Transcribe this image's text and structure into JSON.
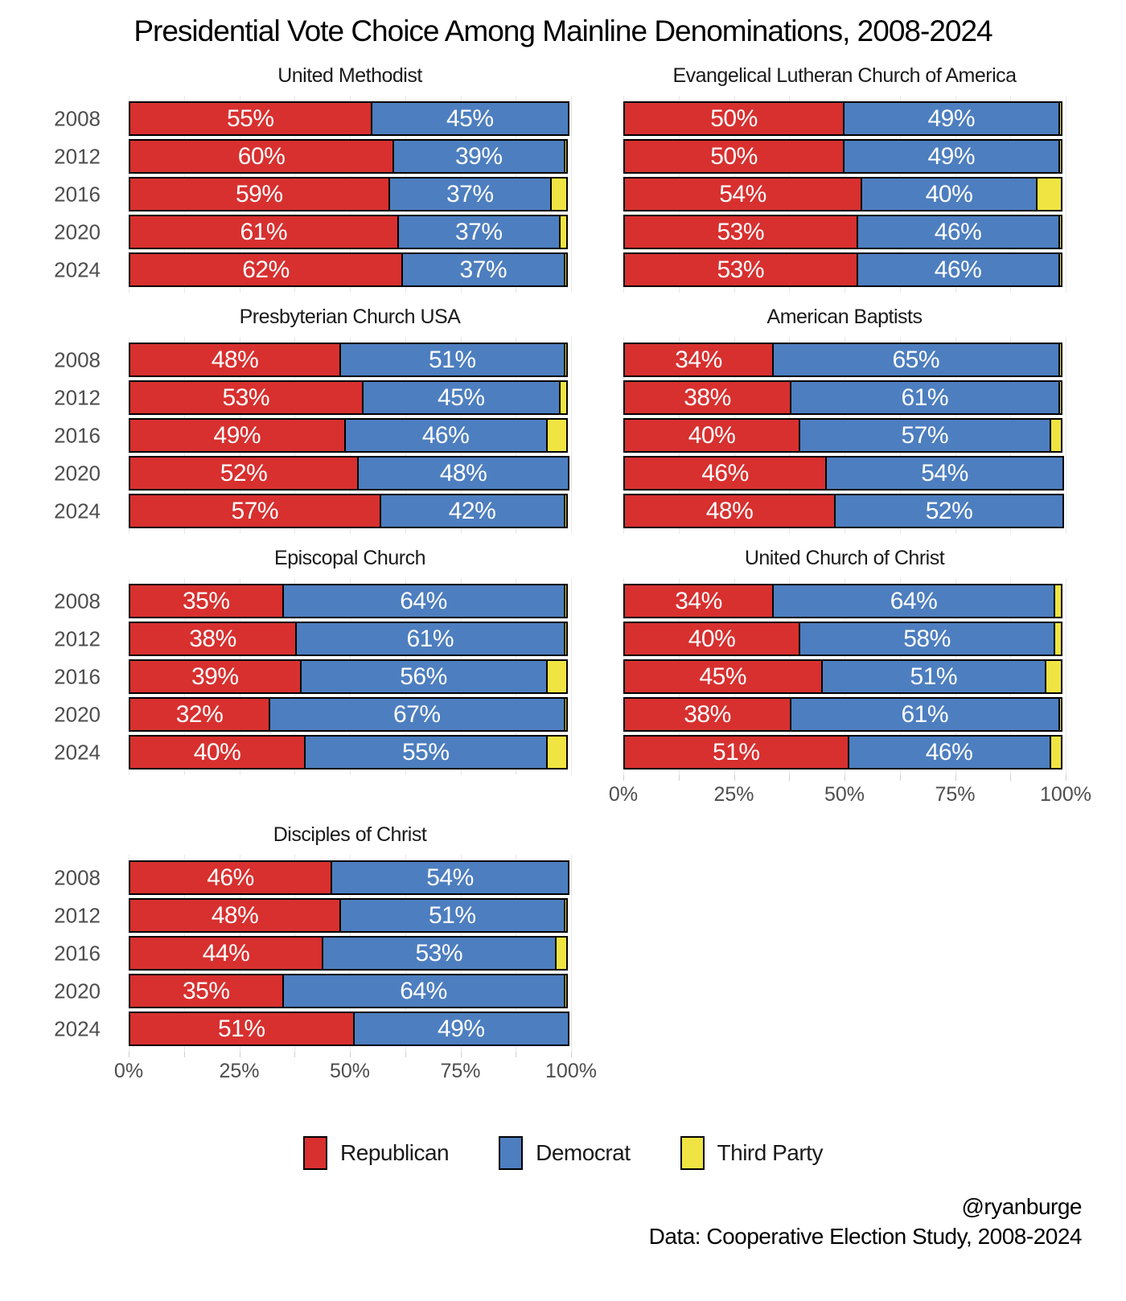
{
  "title": "Presidential Vote Choice Among Mainline Denominations, 2008-2024",
  "caption": {
    "line1": "@ryanburge",
    "line2": "Data: Cooperative Election Study, 2008-2024"
  },
  "colors": {
    "republican": "#d7302f",
    "democrat": "#4d7ebf",
    "third_party": "#f0e442",
    "bar_border": "#000000",
    "gridline": "#e8e8e8",
    "axis_text": "#4d4d4d"
  },
  "legend": [
    {
      "name": "Republican",
      "color": "#d7302f"
    },
    {
      "name": "Democrat",
      "color": "#4d7ebf"
    },
    {
      "name": "Third Party",
      "color": "#f0e442"
    }
  ],
  "axis": {
    "tick_labels": [
      "0%",
      "25%",
      "50%",
      "75%",
      "100%"
    ],
    "tick_positions": [
      0,
      25,
      50,
      75,
      100
    ],
    "minor_step": 12.5,
    "xlim": [
      0,
      100
    ]
  },
  "chart_data": [
    {
      "type": "bar",
      "stacked": true,
      "orientation": "horizontal",
      "title": "United Methodist",
      "column": "left",
      "show_y_labels": true,
      "show_x_axis": false,
      "categories": [
        "2008",
        "2012",
        "2016",
        "2020",
        "2024"
      ],
      "series": [
        {
          "name": "Republican",
          "values": [
            55,
            60,
            59,
            61,
            62
          ]
        },
        {
          "name": "Democrat",
          "values": [
            45,
            39,
            37,
            37,
            37
          ]
        },
        {
          "name": "Third Party",
          "values": [
            0,
            1,
            4,
            2,
            1
          ]
        }
      ]
    },
    {
      "type": "bar",
      "stacked": true,
      "orientation": "horizontal",
      "title": "Evangelical Lutheran Church of America",
      "column": "right",
      "show_y_labels": false,
      "show_x_axis": false,
      "categories": [
        "2008",
        "2012",
        "2016",
        "2020",
        "2024"
      ],
      "series": [
        {
          "name": "Republican",
          "values": [
            50,
            50,
            54,
            53,
            53
          ]
        },
        {
          "name": "Democrat",
          "values": [
            49,
            49,
            40,
            46,
            46
          ]
        },
        {
          "name": "Third Party",
          "values": [
            1,
            1,
            6,
            1,
            1
          ]
        }
      ]
    },
    {
      "type": "bar",
      "stacked": true,
      "orientation": "horizontal",
      "title": "Presbyterian Church USA",
      "column": "left",
      "show_y_labels": true,
      "show_x_axis": false,
      "categories": [
        "2008",
        "2012",
        "2016",
        "2020",
        "2024"
      ],
      "series": [
        {
          "name": "Republican",
          "values": [
            48,
            53,
            49,
            52,
            57
          ]
        },
        {
          "name": "Democrat",
          "values": [
            51,
            45,
            46,
            48,
            42
          ]
        },
        {
          "name": "Third Party",
          "values": [
            1,
            2,
            5,
            0,
            1
          ]
        }
      ]
    },
    {
      "type": "bar",
      "stacked": true,
      "orientation": "horizontal",
      "title": "American Baptists",
      "column": "right",
      "show_y_labels": false,
      "show_x_axis": false,
      "categories": [
        "2008",
        "2012",
        "2016",
        "2020",
        "2024"
      ],
      "series": [
        {
          "name": "Republican",
          "values": [
            34,
            38,
            40,
            46,
            48
          ]
        },
        {
          "name": "Democrat",
          "values": [
            65,
            61,
            57,
            54,
            52
          ]
        },
        {
          "name": "Third Party",
          "values": [
            1,
            1,
            3,
            0,
            0
          ]
        }
      ]
    },
    {
      "type": "bar",
      "stacked": true,
      "orientation": "horizontal",
      "title": "Episcopal Church",
      "column": "left",
      "show_y_labels": true,
      "show_x_axis": false,
      "categories": [
        "2008",
        "2012",
        "2016",
        "2020",
        "2024"
      ],
      "series": [
        {
          "name": "Republican",
          "values": [
            35,
            38,
            39,
            32,
            40
          ]
        },
        {
          "name": "Democrat",
          "values": [
            64,
            61,
            56,
            67,
            55
          ]
        },
        {
          "name": "Third Party",
          "values": [
            1,
            1,
            5,
            1,
            5
          ]
        }
      ]
    },
    {
      "type": "bar",
      "stacked": true,
      "orientation": "horizontal",
      "title": "United Church of Christ",
      "column": "right",
      "show_y_labels": false,
      "show_x_axis": true,
      "categories": [
        "2008",
        "2012",
        "2016",
        "2020",
        "2024"
      ],
      "series": [
        {
          "name": "Republican",
          "values": [
            34,
            40,
            45,
            38,
            51
          ]
        },
        {
          "name": "Democrat",
          "values": [
            64,
            58,
            51,
            61,
            46
          ]
        },
        {
          "name": "Third Party",
          "values": [
            2,
            2,
            4,
            1,
            3
          ]
        }
      ]
    },
    {
      "type": "bar",
      "stacked": true,
      "orientation": "horizontal",
      "title": "Disciples of Christ",
      "column": "left",
      "show_y_labels": true,
      "show_x_axis": true,
      "categories": [
        "2008",
        "2012",
        "2016",
        "2020",
        "2024"
      ],
      "series": [
        {
          "name": "Republican",
          "values": [
            46,
            48,
            44,
            35,
            51
          ]
        },
        {
          "name": "Democrat",
          "values": [
            54,
            51,
            53,
            64,
            49
          ]
        },
        {
          "name": "Third Party",
          "values": [
            0,
            1,
            3,
            1,
            0
          ]
        }
      ]
    }
  ]
}
